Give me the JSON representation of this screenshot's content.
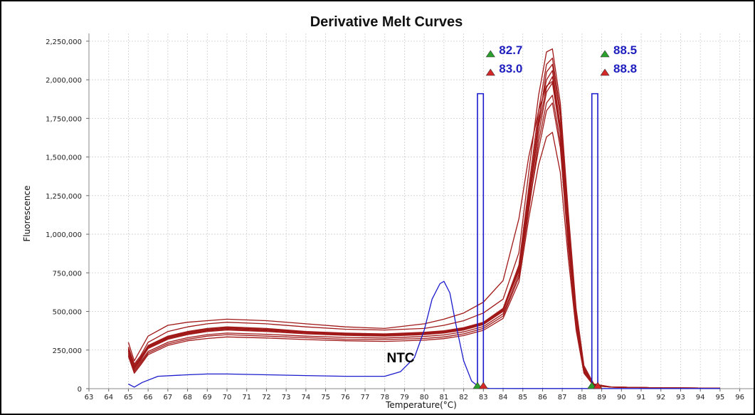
{
  "chart_data": {
    "type": "line",
    "title": "Derivative Melt Curves",
    "xlabel": "Temperature(°C)",
    "ylabel": "Fluorescence",
    "xlim": [
      63,
      96.7
    ],
    "ylim": [
      0,
      2300000
    ],
    "x_ticks": [
      63,
      64,
      65,
      66,
      67,
      68,
      69,
      70,
      71,
      72,
      73,
      74,
      75,
      76,
      77,
      78,
      79,
      80,
      81,
      82,
      83,
      84,
      85,
      86,
      87,
      88,
      89,
      90,
      91,
      92,
      93,
      94,
      95,
      96
    ],
    "y_ticks": [
      0,
      250000,
      500000,
      750000,
      1000000,
      1250000,
      1500000,
      1750000,
      2000000,
      2250000
    ],
    "y_tick_labels": [
      "0",
      "250,000",
      "500,000",
      "750,000",
      "1,000,000",
      "1,250,000",
      "1,500,000",
      "1,750,000",
      "2,000,000",
      "2,250,000"
    ],
    "grid": true,
    "colors": {
      "samples": "#a01818",
      "ntc": "#1a1acc",
      "marker_start": "#2ca02c",
      "marker_end": "#d62728",
      "label": "#1f1fbf"
    },
    "sample_series": {
      "x": [
        65,
        65.3,
        65.6,
        66,
        67,
        68,
        69,
        70,
        72,
        74,
        76,
        78,
        80,
        81,
        82,
        83,
        84,
        84.8,
        85.3,
        85.8,
        86.2,
        86.5,
        86.9,
        87.3,
        87.7,
        88.1,
        88.6,
        89.5,
        92,
        95
      ],
      "curves": [
        [
          260000,
          150000,
          200000,
          280000,
          340000,
          370000,
          390000,
          400000,
          390000,
          370000,
          360000,
          355000,
          365000,
          375000,
          395000,
          430000,
          520000,
          800000,
          1300000,
          1800000,
          2100000,
          2140000,
          1800000,
          1100000,
          500000,
          140000,
          30000,
          10000,
          5000,
          3000
        ],
        [
          240000,
          130000,
          180000,
          260000,
          320000,
          350000,
          370000,
          380000,
          370000,
          355000,
          345000,
          340000,
          350000,
          360000,
          380000,
          415000,
          500000,
          780000,
          1250000,
          1750000,
          2000000,
          2060000,
          1700000,
          1000000,
          450000,
          120000,
          25000,
          10000,
          5000,
          3000
        ],
        [
          270000,
          160000,
          210000,
          300000,
          370000,
          400000,
          420000,
          430000,
          420000,
          400000,
          385000,
          380000,
          390000,
          410000,
          440000,
          490000,
          580000,
          880000,
          1400000,
          1900000,
          2180000,
          2200000,
          1850000,
          1150000,
          520000,
          150000,
          30000,
          10000,
          5000,
          3000
        ],
        [
          220000,
          110000,
          160000,
          230000,
          290000,
          320000,
          340000,
          350000,
          340000,
          330000,
          320000,
          318000,
          325000,
          335000,
          355000,
          390000,
          470000,
          720000,
          1150000,
          1600000,
          1850000,
          1900000,
          1600000,
          950000,
          420000,
          110000,
          20000,
          10000,
          5000,
          3000
        ],
        [
          250000,
          140000,
          190000,
          270000,
          330000,
          360000,
          380000,
          390000,
          380000,
          365000,
          352000,
          348000,
          358000,
          368000,
          388000,
          425000,
          510000,
          760000,
          1200000,
          1650000,
          1920000,
          1980000,
          1650000,
          980000,
          440000,
          115000,
          22000,
          10000,
          5000,
          3000
        ],
        [
          230000,
          120000,
          170000,
          240000,
          300000,
          330000,
          350000,
          360000,
          352000,
          340000,
          332000,
          328000,
          338000,
          348000,
          368000,
          402000,
          485000,
          740000,
          1180000,
          1550000,
          1800000,
          1850000,
          1560000,
          920000,
          410000,
          105000,
          20000,
          10000,
          5000,
          3000
        ],
        [
          210000,
          100000,
          150000,
          220000,
          280000,
          310000,
          325000,
          335000,
          328000,
          318000,
          310000,
          306000,
          314000,
          324000,
          344000,
          378000,
          455000,
          690000,
          1100000,
          1450000,
          1630000,
          1660000,
          1400000,
          850000,
          380000,
          100000,
          18000,
          10000,
          5000,
          3000
        ],
        [
          300000,
          180000,
          250000,
          340000,
          410000,
          430000,
          440000,
          450000,
          440000,
          420000,
          400000,
          390000,
          420000,
          450000,
          490000,
          560000,
          700000,
          1100000,
          1500000,
          1800000,
          1960000,
          1990000,
          1700000,
          1050000,
          480000,
          130000,
          28000,
          10000,
          5000,
          3000
        ],
        [
          245000,
          135000,
          185000,
          265000,
          325000,
          355000,
          375000,
          385000,
          375000,
          360000,
          350000,
          345000,
          355000,
          365000,
          385000,
          420000,
          505000,
          770000,
          1230000,
          1700000,
          1950000,
          2020000,
          1680000,
          990000,
          445000,
          118000,
          23000,
          10000,
          5000,
          3000
        ],
        [
          255000,
          145000,
          195000,
          275000,
          335000,
          365000,
          385000,
          395000,
          385000,
          368000,
          356000,
          352000,
          362000,
          372000,
          392000,
          428000,
          515000,
          790000,
          1260000,
          1720000,
          2050000,
          2100000,
          1760000,
          1050000,
          470000,
          125000,
          24000,
          10000,
          5000,
          3000
        ]
      ]
    },
    "ntc_series": {
      "x": [
        65,
        65.3,
        65.7,
        66.5,
        68,
        69,
        70,
        72,
        74,
        76,
        78,
        78.8,
        79.5,
        80,
        80.4,
        80.8,
        81,
        81.3,
        81.6,
        82,
        82.4,
        82.8,
        83.3,
        85,
        88,
        91,
        94,
        95
      ],
      "values": [
        30000,
        10000,
        40000,
        80000,
        90000,
        95000,
        95000,
        90000,
        85000,
        80000,
        80000,
        110000,
        200000,
        380000,
        580000,
        680000,
        695000,
        620000,
        420000,
        180000,
        50000,
        8000,
        2000,
        1000,
        1000,
        1000,
        1000,
        1000
      ]
    },
    "markers": [
      {
        "x_start": 82.7,
        "x_end": 83.0,
        "start_label": "82.7",
        "end_label": "83.0"
      },
      {
        "x_start": 88.5,
        "x_end": 88.8,
        "start_label": "88.5",
        "end_label": "88.8"
      }
    ],
    "annotation": {
      "text": "NTC",
      "x": 78.1,
      "y": 170000
    }
  }
}
